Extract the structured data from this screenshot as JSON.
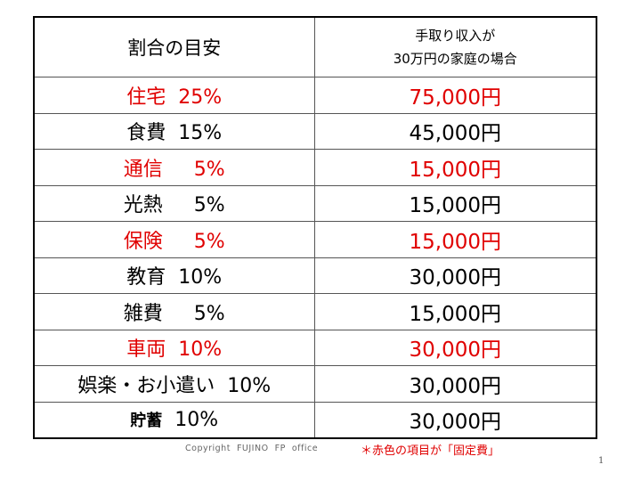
{
  "table": {
    "header": {
      "left": "割合の目安",
      "right_line1": "手取り収入が",
      "right_line2": "30万円の家庭の場合"
    },
    "rows": [
      {
        "category": "住宅",
        "percent": "25%",
        "spacer": "  ",
        "amount": "75,000円",
        "fixed": true
      },
      {
        "category": "食費",
        "percent": "15%",
        "spacer": "  ",
        "amount": "45,000円",
        "fixed": false
      },
      {
        "category": "通信",
        "percent": "5%",
        "spacer": "     ",
        "amount": "15,000円",
        "fixed": true
      },
      {
        "category": "光熱",
        "percent": "5%",
        "spacer": "     ",
        "amount": "15,000円",
        "fixed": false
      },
      {
        "category": "保険",
        "percent": "5%",
        "spacer": "     ",
        "amount": "15,000円",
        "fixed": true
      },
      {
        "category": "教育",
        "percent": "10%",
        "spacer": "  ",
        "amount": "30,000円",
        "fixed": false
      },
      {
        "category": "雑費",
        "percent": "5%",
        "spacer": "     ",
        "amount": "15,000円",
        "fixed": false
      },
      {
        "category": "車両",
        "percent": "10%",
        "spacer": "  ",
        "amount": "30,000円",
        "fixed": true
      },
      {
        "category": "娯楽・お小遣い",
        "percent": "10%",
        "spacer": "  ",
        "amount": "30,000円",
        "fixed": false
      },
      {
        "category": "貯蓄",
        "percent": "10%",
        "spacer": "  ",
        "amount": "30,000円",
        "fixed": false,
        "small_label": true
      }
    ]
  },
  "footer": {
    "copyright": "Copyright  FUJINO  FP  office",
    "note": "＊赤色の項目が「固定費」",
    "page_number": "1"
  },
  "colors": {
    "fixed_cost_red": "#e00000",
    "text": "#000000",
    "border": "#000000"
  }
}
